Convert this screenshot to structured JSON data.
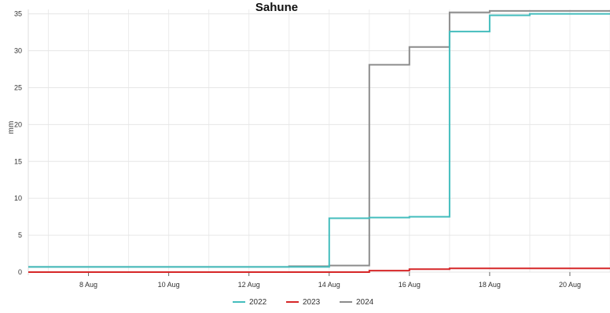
{
  "chart_data": {
    "type": "line",
    "step": true,
    "title": "Sahune",
    "xlabel": "",
    "ylabel": "mm",
    "xlim": [
      "2024-08-06T12:00",
      "2024-08-21T00:00"
    ],
    "ylim": [
      0,
      35.6
    ],
    "x_ticks": [
      "8 Aug",
      "10 Aug",
      "12 Aug",
      "14 Aug",
      "16 Aug",
      "18 Aug",
      "20 Aug"
    ],
    "y_ticks": [
      0,
      5,
      10,
      15,
      20,
      25,
      30,
      35
    ],
    "grid": true,
    "legend_position": "bottom-center",
    "series": [
      {
        "name": "2022",
        "color": "#44bdbd",
        "points": [
          [
            "2024-08-06T12:00",
            0.7
          ],
          [
            "2024-08-14T00:00",
            7.3
          ],
          [
            "2024-08-15T00:00",
            7.4
          ],
          [
            "2024-08-16T00:00",
            7.5
          ],
          [
            "2024-08-17T00:00",
            32.6
          ],
          [
            "2024-08-18T00:00",
            34.8
          ],
          [
            "2024-08-19T00:00",
            35.0
          ],
          [
            "2024-08-21T00:00",
            35.0
          ]
        ]
      },
      {
        "name": "2023",
        "color": "#d62728",
        "points": [
          [
            "2024-08-06T12:00",
            0.0
          ],
          [
            "2024-08-15T00:00",
            0.2
          ],
          [
            "2024-08-16T00:00",
            0.4
          ],
          [
            "2024-08-17T00:00",
            0.5
          ],
          [
            "2024-08-21T00:00",
            0.5
          ]
        ]
      },
      {
        "name": "2024",
        "color": "#8c8c8c",
        "points": [
          [
            "2024-08-06T12:00",
            0.7
          ],
          [
            "2024-08-13T00:00",
            0.8
          ],
          [
            "2024-08-14T00:00",
            0.9
          ],
          [
            "2024-08-15T00:00",
            28.1
          ],
          [
            "2024-08-16T00:00",
            30.5
          ],
          [
            "2024-08-17T00:00",
            35.2
          ],
          [
            "2024-08-18T00:00",
            35.4
          ],
          [
            "2024-08-21T00:00",
            35.4
          ]
        ]
      }
    ]
  }
}
